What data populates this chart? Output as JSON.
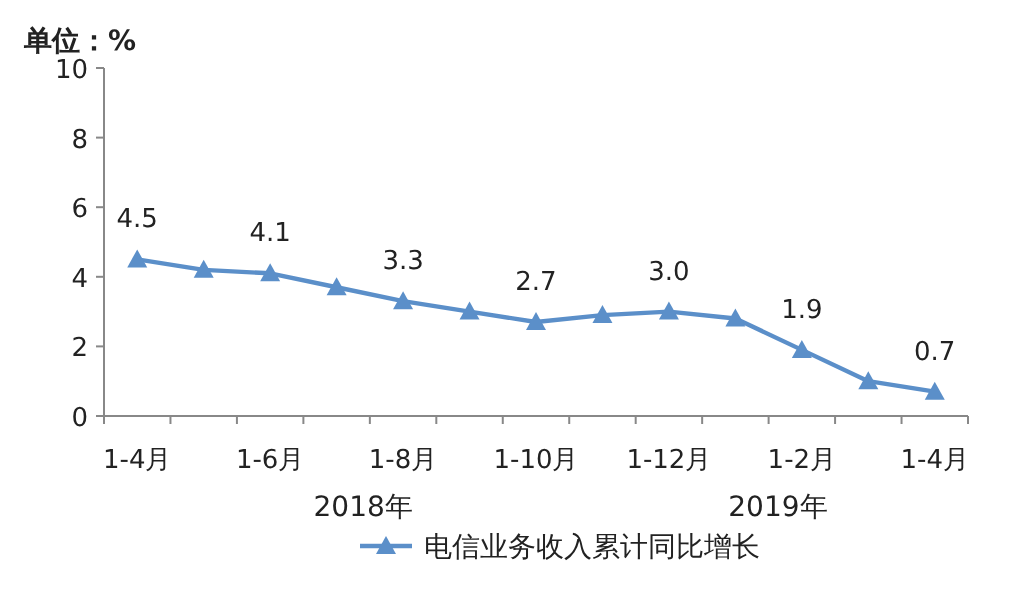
{
  "chart_data": {
    "type": "line",
    "ylabel": "单位：%",
    "categories": [
      "1-4月",
      null,
      "1-6月",
      null,
      "1-8月",
      null,
      "1-10月",
      null,
      "1-12月",
      null,
      "1-2月",
      null,
      "1-4月"
    ],
    "series": [
      {
        "name": "电信业务收入累计同比增长",
        "color": "#5b8fc9",
        "values": [
          4.5,
          4.2,
          4.1,
          3.7,
          3.3,
          3.0,
          2.7,
          2.9,
          3.0,
          2.8,
          1.9,
          1.0,
          0.7
        ],
        "value_labels": [
          "4.5",
          null,
          "4.1",
          null,
          "3.3",
          null,
          "2.7",
          null,
          "3.0",
          null,
          "1.9",
          null,
          "0.7"
        ]
      }
    ],
    "ylim": [
      0,
      10
    ],
    "yticks": [
      0,
      2,
      4,
      6,
      8,
      10
    ],
    "grid": false,
    "marker": "triangle",
    "line_style": "solid",
    "legend": "bottom",
    "annotations": [
      "2018年",
      "2019年"
    ]
  }
}
